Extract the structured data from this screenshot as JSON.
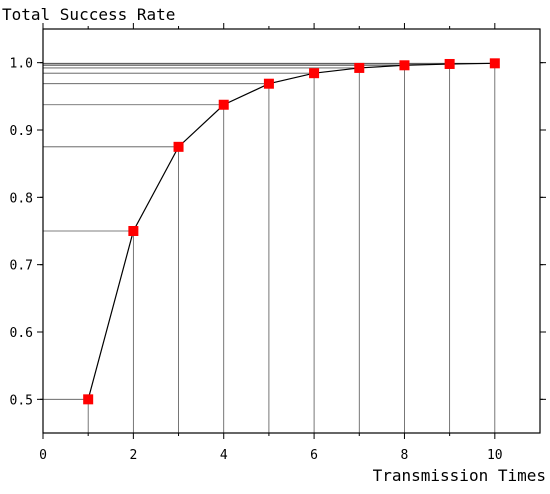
{
  "chart_data": {
    "type": "line",
    "title": "",
    "xlabel": "Transmission Times",
    "ylabel": "Total Success Rate",
    "xlim": [
      0,
      11
    ],
    "ylim": [
      0.45,
      1.05
    ],
    "x_ticks": [
      "0",
      "2",
      "4",
      "6",
      "8",
      "10"
    ],
    "x_tick_values": [
      0,
      2,
      4,
      6,
      8,
      10
    ],
    "y_ticks": [
      "0.5",
      "0.6",
      "0.7",
      "0.8",
      "0.9",
      "1.0"
    ],
    "y_tick_values": [
      0.5,
      0.6,
      0.7,
      0.8,
      0.9,
      1.0
    ],
    "series": [
      {
        "x": [
          1,
          2,
          3,
          4,
          5,
          6,
          7,
          8,
          9,
          10
        ],
        "values": [
          0.5,
          0.75,
          0.875,
          0.9375,
          0.96875,
          0.984375,
          0.9921875,
          0.99609375,
          0.998046875,
          0.9990234375
        ]
      }
    ],
    "grid": false,
    "guide_lines": true,
    "colors": {
      "marker": "#ff0000",
      "line": "#000000",
      "guide": "#555555"
    }
  }
}
